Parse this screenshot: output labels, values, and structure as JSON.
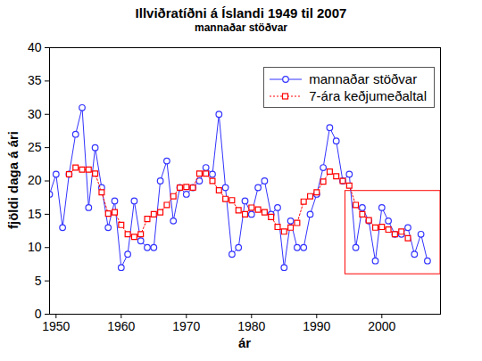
{
  "chart_data": {
    "type": "line",
    "title": "Illviðratíðni á Íslandi 1949 til 2007",
    "subtitle": "mannaðar stöðvar",
    "x_label": "ár",
    "y_label": "fjöldi daga á ári",
    "x": [
      1949,
      1950,
      1951,
      1952,
      1953,
      1954,
      1955,
      1956,
      1957,
      1958,
      1959,
      1960,
      1961,
      1962,
      1963,
      1964,
      1965,
      1966,
      1967,
      1968,
      1969,
      1970,
      1971,
      1972,
      1973,
      1974,
      1975,
      1976,
      1977,
      1978,
      1979,
      1980,
      1981,
      1982,
      1983,
      1984,
      1985,
      1986,
      1987,
      1988,
      1989,
      1990,
      1991,
      1992,
      1993,
      1994,
      1995,
      1996,
      1997,
      1998,
      1999,
      2000,
      2001,
      2002,
      2003,
      2004,
      2005,
      2006,
      2007
    ],
    "series": [
      {
        "name": "mannaðar stöðvar",
        "color": "#3333ff",
        "marker": "circle",
        "line_style": "solid",
        "values": [
          18,
          21,
          13,
          21,
          27,
          31,
          16,
          25,
          19,
          13,
          17,
          7,
          9,
          17,
          11,
          10,
          10,
          20,
          23,
          14,
          19,
          18,
          19,
          20,
          22,
          21,
          30,
          19,
          9,
          10,
          17,
          15,
          19,
          20,
          15,
          16,
          7,
          14,
          10,
          10,
          15,
          18,
          22,
          28,
          26,
          20,
          21,
          10,
          16,
          14,
          8,
          16,
          14,
          12,
          12,
          13,
          9,
          12,
          8
        ]
      },
      {
        "name": "7-ára keðjumeðaltal",
        "color": "#ff0000",
        "marker": "square",
        "line_style": "dotted",
        "values": [
          null,
          null,
          null,
          21,
          22,
          21.7,
          21.7,
          21.1,
          18.3,
          15.1,
          15.3,
          13.4,
          12.0,
          11.6,
          12.0,
          14.3,
          15.0,
          15.3,
          16.4,
          17.7,
          19.0,
          19.1,
          19.0,
          21.1,
          21.1,
          20.0,
          18.6,
          17.3,
          17.1,
          15.6,
          15.0,
          16.0,
          15.7,
          15.3,
          14.6,
          13.1,
          12.4,
          13.0,
          13.7,
          16.9,
          17.7,
          18.3,
          19.9,
          21.4,
          20.7,
          20.0,
          19.3,
          16.4,
          15.0,
          14.1,
          13.0,
          13.1,
          12.7,
          12.0,
          12.4,
          11.4,
          null,
          null,
          null
        ]
      }
    ],
    "xlim": [
      1949,
      2009
    ],
    "xticks": [
      1950,
      1960,
      1970,
      1980,
      1990,
      2000
    ],
    "ylim": [
      0,
      40
    ],
    "yticks": [
      0,
      5,
      10,
      15,
      20,
      25,
      30,
      35,
      40
    ],
    "grid": false,
    "legend": "top-right",
    "highlight_box": {
      "x": [
        1994.4,
        2009
      ],
      "y": [
        6.0,
        18.5
      ],
      "color": "#ff0000"
    }
  }
}
